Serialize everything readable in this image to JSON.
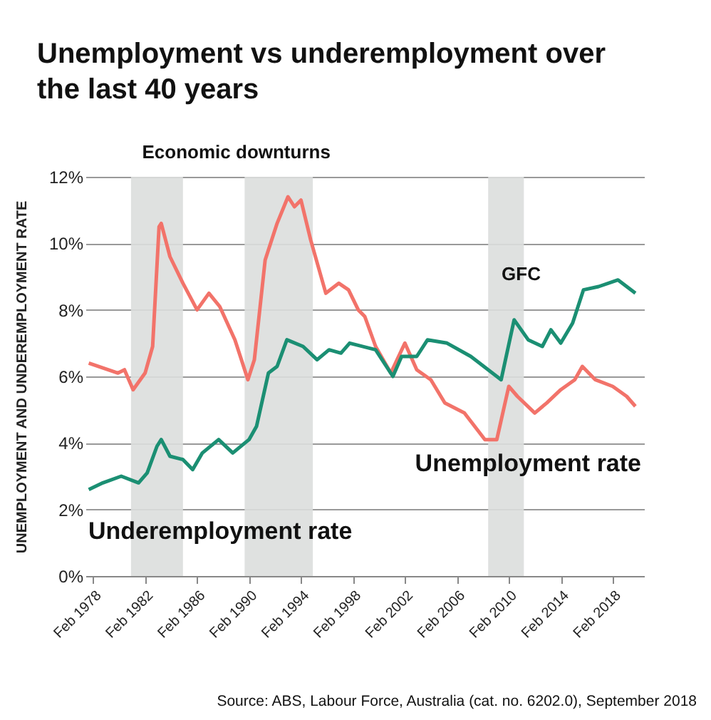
{
  "chart_data": {
    "type": "line",
    "title": "Unemployment vs underemployment over the last 40 years",
    "ylabel": "UNEMPLOYMENT AND UNDEREMPLOYMENT RATE",
    "annotations": [
      "Economic downturns",
      "GFC",
      "Source: ABS, Labour Force, Australia (cat. no. 6202.0), September 2018"
    ],
    "series": [
      {
        "name": "Unemployment rate",
        "color": "#f2736a",
        "x": [
          "1977-10",
          "1980-01",
          "1980-07",
          "1981-03",
          "1982-02",
          "1982-09",
          "1983-03",
          "1983-05",
          "1984-01",
          "1985-01",
          "1986-02",
          "1987-01",
          "1987-11",
          "1989-01",
          "1990-01",
          "1990-07",
          "1991-05",
          "1992-04",
          "1993-02",
          "1993-08",
          "1994-02",
          "1994-11",
          "1996-01",
          "1997-01",
          "1997-10",
          "1998-07",
          "1999-01",
          "1999-11",
          "2001-01",
          "2002-02",
          "2003-01",
          "2004-02",
          "2005-03",
          "2006-09",
          "2008-04",
          "2009-03",
          "2010-02",
          "2010-10",
          "2012-02",
          "2013-01",
          "2014-02",
          "2015-03",
          "2015-10",
          "2016-10",
          "2018-02",
          "2019-03",
          "2019-11"
        ],
        "values": [
          6.4,
          6.1,
          6.2,
          5.6,
          6.1,
          6.9,
          10.5,
          10.6,
          9.6,
          8.8,
          8.0,
          8.5,
          8.1,
          7.1,
          5.9,
          6.5,
          9.5,
          10.6,
          11.4,
          11.1,
          11.3,
          10.1,
          8.5,
          8.8,
          8.6,
          8.0,
          7.8,
          6.9,
          6.1,
          7.0,
          6.2,
          5.9,
          5.2,
          4.9,
          4.1,
          4.1,
          5.7,
          5.4,
          4.9,
          5.2,
          5.6,
          5.9,
          6.3,
          5.9,
          5.7,
          5.4,
          5.1
        ]
      },
      {
        "name": "Underemployment rate",
        "color": "#1b8f73",
        "x": [
          "1977-10",
          "1978-11",
          "1980-04",
          "1981-08",
          "1982-04",
          "1983-01",
          "1983-05",
          "1984-01",
          "1985-01",
          "1985-10",
          "1986-07",
          "1987-10",
          "1988-11",
          "1990-02",
          "1990-09",
          "1991-08",
          "1992-04",
          "1993-01",
          "1994-04",
          "1995-05",
          "1996-04",
          "1997-03",
          "1997-11",
          "1999-11",
          "2001-03",
          "2001-11",
          "2003-01",
          "2003-11",
          "2005-05",
          "2007-03",
          "2009-07",
          "2010-07",
          "2011-08",
          "2012-09",
          "2013-05",
          "2014-02",
          "2015-01",
          "2015-11",
          "2017-01",
          "2018-07",
          "2019-11"
        ],
        "values": [
          2.6,
          2.8,
          3.0,
          2.8,
          3.1,
          3.9,
          4.1,
          3.6,
          3.5,
          3.2,
          3.7,
          4.1,
          3.7,
          4.1,
          4.5,
          6.1,
          6.3,
          7.1,
          6.9,
          6.5,
          6.8,
          6.7,
          7.0,
          6.8,
          6.0,
          6.6,
          6.6,
          7.1,
          7.0,
          6.6,
          5.9,
          7.7,
          7.1,
          6.9,
          7.4,
          7.0,
          7.6,
          8.6,
          8.7,
          8.9,
          8.5
        ]
      }
    ],
    "bands": [
      {
        "axis": "x",
        "from": "1981-01",
        "to": "1985-01",
        "color": "#dcdedd"
      },
      {
        "axis": "x",
        "from": "1989-10",
        "to": "1995-01",
        "color": "#dcdedd"
      },
      {
        "axis": "x",
        "from": "2008-07",
        "to": "2011-04",
        "color": "#dcdedd"
      }
    ],
    "xlim": [
      "1977-07",
      "2020-07"
    ],
    "xticks": [
      {
        "value": "1978-02",
        "label": "Feb 1978"
      },
      {
        "value": "1982-02",
        "label": "Feb 1982"
      },
      {
        "value": "1986-02",
        "label": "Feb 1986"
      },
      {
        "value": "1990-02",
        "label": "Feb 1990"
      },
      {
        "value": "1994-02",
        "label": "Feb 1994"
      },
      {
        "value": "1998-02",
        "label": "Feb 1998"
      },
      {
        "value": "2002-02",
        "label": "Feb 2002"
      },
      {
        "value": "2006-02",
        "label": "Feb 2006"
      },
      {
        "value": "2010-02",
        "label": "Feb 2010"
      },
      {
        "value": "2014-02",
        "label": "Feb 2014"
      },
      {
        "value": "2018-02",
        "label": "Feb 2018"
      }
    ],
    "ylim": [
      0,
      12
    ],
    "yticks": [
      {
        "value": 0,
        "label": "0%"
      },
      {
        "value": 2,
        "label": "2%"
      },
      {
        "value": 4,
        "label": "4%"
      },
      {
        "value": 6,
        "label": "6%"
      },
      {
        "value": 8,
        "label": "8%"
      },
      {
        "value": 10,
        "label": "10%"
      },
      {
        "value": 12,
        "label": "12%"
      }
    ],
    "grid": "y",
    "line_style": "solid",
    "marker": "none"
  }
}
